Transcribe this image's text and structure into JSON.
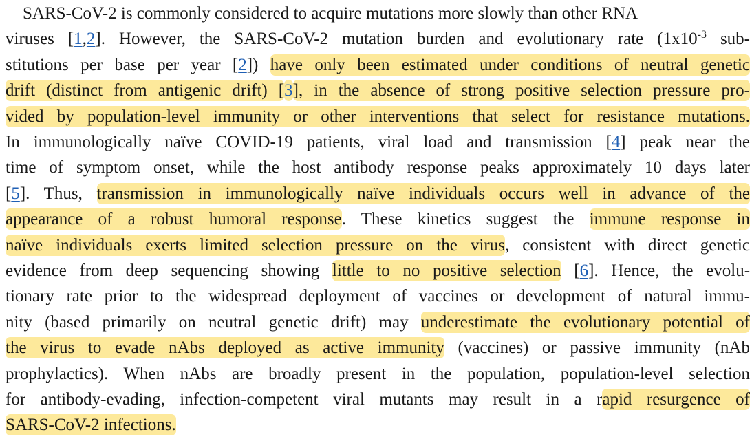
{
  "paragraph": {
    "lines": [
      [
        {
          "t": "    SARS-CoV-2 is commonly considered to acquire mutations more slowly than other RNA"
        }
      ],
      [
        {
          "t": "viruses ["
        },
        {
          "t": "1",
          "ref": true
        },
        {
          "t": ","
        },
        {
          "t": "2",
          "ref": true
        },
        {
          "t": "]. However, the SARS-CoV-2 mutation burden and evolutionary rate (1x10"
        },
        {
          "t": "-3",
          "sup": true
        },
        {
          "t": " sub-"
        }
      ],
      [
        {
          "t": "stitutions per base per year ["
        },
        {
          "t": "2",
          "ref": true
        },
        {
          "t": "]) "
        },
        {
          "t": "have only been estimated under conditions of neutral genetic",
          "hl": true
        }
      ],
      [
        {
          "t": "drift (distinct from antigenic drift) [",
          "hl": true
        },
        {
          "t": "3",
          "ref": true,
          "hl": true
        },
        {
          "t": "], in the absence of strong positive selection pressure pro-",
          "hl": true
        }
      ],
      [
        {
          "t": "vided by population-level immunity or other interventions that select for resistance mutations.",
          "hl": true
        }
      ],
      [
        {
          "t": "In immunologically naïve COVID-19 patients, viral load and transmission ["
        },
        {
          "t": "4",
          "ref": true
        },
        {
          "t": "] peak near the"
        }
      ],
      [
        {
          "t": "time of symptom onset, while the host antibody response peaks approximately 10 days later"
        }
      ],
      [
        {
          "t": "["
        },
        {
          "t": "5",
          "ref": true
        },
        {
          "t": "]. Thus, "
        },
        {
          "t": "transmission in immunologically naïve individuals occurs well in advance of the",
          "hl": true
        }
      ],
      [
        {
          "t": "appearance of a robust humoral response",
          "hl": true
        },
        {
          "t": ". These kinetics suggest the "
        },
        {
          "t": "immune response in",
          "hl": true
        }
      ],
      [
        {
          "t": "naïve individuals exerts limited selection pressure on the virus",
          "hl": true
        },
        {
          "t": ", consistent with direct genetic"
        }
      ],
      [
        {
          "t": "evidence from deep sequencing showing "
        },
        {
          "t": "little to no positive selection",
          "hl": true
        },
        {
          "t": " ["
        },
        {
          "t": "6",
          "ref": true
        },
        {
          "t": "]. Hence, the evolu-"
        }
      ],
      [
        {
          "t": "tionary rate prior to the widespread deployment of vaccines or development of natural immu-"
        }
      ],
      [
        {
          "t": "nity (based primarily on neutral genetic drift) may "
        },
        {
          "t": "underestimate the evolutionary potential of",
          "hl": true
        }
      ],
      [
        {
          "t": "the virus to evade nAbs deployed as active immunity",
          "hl": true
        },
        {
          "t": " (vaccines) or passive immunity (nAb"
        }
      ],
      [
        {
          "t": "prophylactics). When nAbs are broadly present in the population, population-level selection"
        }
      ],
      [
        {
          "t": "for antibody-evading, infection-competent viral mutants may result in a r"
        },
        {
          "t": "apid resurgence of",
          "hl": true
        }
      ],
      [
        {
          "t": "SARS-CoV-2 infections.",
          "hl": true
        }
      ]
    ]
  }
}
